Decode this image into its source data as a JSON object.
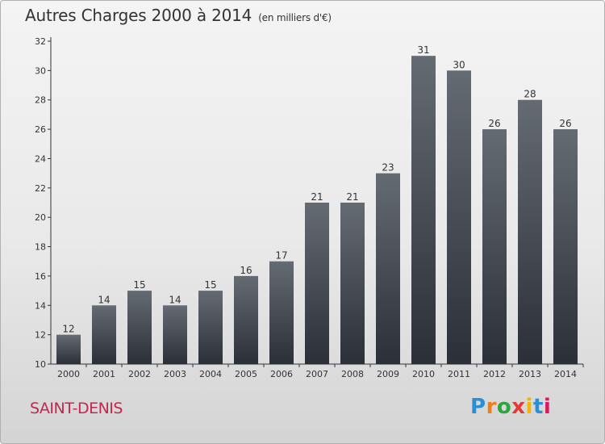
{
  "header": {
    "title": "Autres Charges 2000 à 2014",
    "subtitle": "(en milliers d'€)"
  },
  "footer": {
    "commune": "SAINT-DENIS",
    "brand": [
      "P",
      "r",
      "o",
      "x",
      "i",
      "t",
      "i"
    ],
    "brand_colors": [
      "#2a8fd6",
      "#f07d1a",
      "#2aa63d",
      "#e53935",
      "#f5b400",
      "#2a8fd6",
      "#d81b60"
    ]
  },
  "chart_data": {
    "type": "bar",
    "title": "Autres Charges 2000 à 2014",
    "subtitle": "(en milliers d'€)",
    "categories": [
      "2000",
      "2001",
      "2002",
      "2003",
      "2004",
      "2005",
      "2006",
      "2007",
      "2008",
      "2009",
      "2010",
      "2011",
      "2012",
      "2013",
      "2014"
    ],
    "values": [
      12,
      14,
      15,
      14,
      15,
      16,
      17,
      21,
      21,
      23,
      31,
      30,
      26,
      28,
      26
    ],
    "ylim": [
      10,
      32
    ],
    "yticks": [
      10,
      12,
      14,
      16,
      18,
      20,
      22,
      24,
      26,
      28,
      30,
      32
    ],
    "grid": false,
    "bar_color_top": "#656b73",
    "bar_color_bottom": "#2b3038"
  }
}
